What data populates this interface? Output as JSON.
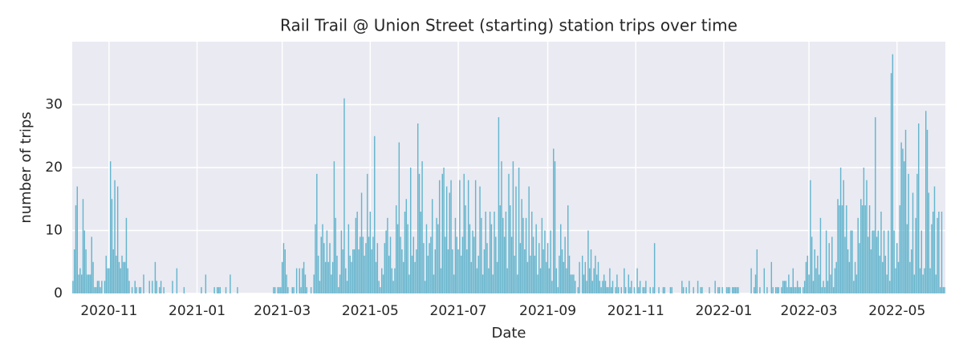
{
  "chart_data": {
    "type": "bar",
    "title": "Rail Trail @ Union Street (starting) station trips over time",
    "xlabel": "Date",
    "ylabel": "number of trips",
    "color": "#64b5cd",
    "grid": true,
    "months": [
      "2020-10",
      "2020-11",
      "2020-12",
      "2021-01",
      "2021-02",
      "2021-03",
      "2021-04",
      "2021-05",
      "2021-06",
      "2021-07",
      "2021-08",
      "2021-09",
      "2021-10",
      "2021-11",
      "2021-12",
      "2022-01",
      "2022-02",
      "2022-03",
      "2022-04",
      "2022-05",
      "2022-06"
    ],
    "values": [
      [
        2,
        7,
        14,
        17,
        3,
        4,
        3,
        15,
        10,
        7,
        3,
        3,
        3,
        9,
        5,
        1,
        1,
        2,
        2,
        1,
        2,
        0,
        2,
        6,
        4
      ],
      [
        4,
        21,
        15,
        7,
        18,
        6,
        17,
        5,
        4,
        6,
        5,
        5,
        12,
        4,
        2,
        0,
        1,
        0,
        2,
        1,
        0,
        1,
        1,
        0,
        3,
        0,
        0,
        0,
        2,
        0
      ],
      [
        2,
        0,
        5,
        2,
        0,
        1,
        2,
        0,
        1,
        0,
        0,
        0,
        0,
        0,
        2,
        0,
        0,
        4,
        0,
        0,
        0,
        0,
        1,
        0,
        0,
        0,
        0,
        0,
        0,
        0,
        0
      ],
      [
        0,
        0,
        0,
        1,
        0,
        0,
        3,
        0,
        0,
        0,
        0,
        0,
        1,
        0,
        1,
        1,
        1,
        0,
        0,
        0,
        1,
        0,
        0,
        3,
        0,
        0,
        0,
        0,
        1,
        0,
        0
      ],
      [
        0,
        0,
        0,
        0,
        0,
        0,
        0,
        0,
        0,
        0,
        0,
        0,
        0,
        0,
        0,
        0,
        0,
        0,
        0,
        0,
        0,
        0,
        1,
        1,
        0,
        1,
        1,
        1
      ],
      [
        5,
        8,
        7,
        3,
        1,
        0,
        0,
        1,
        1,
        0,
        4,
        0,
        4,
        1,
        4,
        5,
        3,
        1,
        0,
        0,
        1,
        0,
        3,
        11,
        19,
        6,
        2,
        9,
        11,
        8,
        5
      ],
      [
        10,
        5,
        8,
        3,
        5,
        21,
        12,
        6,
        1,
        3,
        10,
        7,
        31,
        4,
        2,
        11,
        6,
        5,
        7,
        7,
        12,
        13,
        7,
        9,
        16,
        9,
        6,
        8,
        19,
        9
      ],
      [
        13,
        7,
        9,
        25,
        5,
        8,
        2,
        1,
        4,
        3,
        8,
        10,
        12,
        6,
        9,
        4,
        2,
        4,
        14,
        11,
        24,
        9,
        7,
        5,
        13,
        15,
        11,
        3,
        20,
        6,
        9
      ],
      [
        5,
        7,
        27,
        19,
        13,
        21,
        8,
        2,
        11,
        6,
        8,
        9,
        15,
        3,
        7,
        12,
        11,
        18,
        4,
        19,
        20,
        9,
        17,
        7,
        16,
        18,
        7,
        3,
        12,
        9
      ],
      [
        7,
        18,
        6,
        9,
        19,
        14,
        7,
        18,
        11,
        5,
        10,
        9,
        18,
        4,
        6,
        17,
        12,
        3,
        7,
        13,
        8,
        4,
        13,
        11,
        3,
        13,
        9,
        5,
        28,
        14,
        21
      ],
      [
        12,
        9,
        13,
        4,
        19,
        14,
        9,
        21,
        6,
        17,
        3,
        20,
        8,
        15,
        12,
        7,
        12,
        5,
        17,
        6,
        13,
        9,
        6,
        11,
        3,
        8,
        4,
        12,
        7,
        10,
        5
      ],
      [
        8,
        4,
        10,
        2,
        23,
        21,
        4,
        1,
        6,
        11,
        7,
        5,
        9,
        4,
        14,
        6,
        3,
        3,
        3,
        2,
        0,
        1,
        5,
        0,
        6,
        3,
        5,
        2,
        10,
        4
      ],
      [
        7,
        2,
        4,
        6,
        3,
        5,
        2,
        1,
        2,
        3,
        2,
        1,
        1,
        4,
        1,
        2,
        0,
        1,
        3,
        1,
        0,
        1,
        0,
        4,
        1,
        0,
        3,
        1,
        2,
        0,
        1
      ],
      [
        0,
        4,
        1,
        2,
        0,
        1,
        1,
        2,
        0,
        0,
        1,
        0,
        1,
        8,
        0,
        0,
        1,
        0,
        0,
        1,
        1,
        0,
        0,
        0,
        1,
        1,
        0,
        0,
        0,
        0
      ],
      [
        0,
        0,
        2,
        1,
        0,
        1,
        0,
        2,
        0,
        0,
        1,
        0,
        0,
        2,
        0,
        1,
        1,
        0,
        0,
        0,
        0,
        1,
        0,
        0,
        0,
        2,
        0,
        1,
        1,
        0,
        1
      ],
      [
        0,
        0,
        1,
        1,
        1,
        0,
        1,
        1,
        1,
        1,
        1,
        0,
        0,
        0,
        0,
        0,
        0,
        0,
        0,
        4,
        0,
        1,
        3,
        7,
        0,
        1,
        0,
        0,
        4,
        0,
        1
      ],
      [
        0,
        0,
        5,
        1,
        0,
        1,
        1,
        1,
        0,
        1,
        2,
        2,
        2,
        1,
        3,
        1,
        1,
        4,
        1,
        1,
        2,
        1,
        1,
        0,
        1,
        2,
        5,
        6
      ],
      [
        3,
        18,
        9,
        2,
        7,
        4,
        6,
        3,
        12,
        1,
        2,
        1,
        10,
        2,
        8,
        3,
        9,
        1,
        4,
        5,
        15,
        14,
        20,
        14,
        18,
        9,
        14,
        7,
        5,
        10,
        10
      ],
      [
        2,
        5,
        3,
        12,
        8,
        15,
        14,
        20,
        14,
        18,
        9,
        14,
        7,
        10,
        10,
        28,
        9,
        10,
        6,
        13,
        5,
        10,
        6,
        3,
        10,
        2,
        35,
        38,
        10,
        4
      ],
      [
        8,
        5,
        14,
        24,
        23,
        21,
        26,
        11,
        19,
        5,
        7,
        16,
        3,
        12,
        19,
        27,
        4,
        10,
        3,
        4,
        29,
        26,
        16,
        4,
        11,
        13,
        17,
        3,
        12,
        13,
        1
      ],
      [
        13,
        1,
        1
      ]
    ],
    "xticks": [
      "2020-11",
      "2021-01",
      "2021-03",
      "2021-05",
      "2021-07",
      "2021-09",
      "2021-11",
      "2022-01",
      "2022-03",
      "2022-05"
    ],
    "ylim": [
      0,
      40
    ],
    "yticks": [
      0,
      10,
      20,
      30
    ]
  }
}
